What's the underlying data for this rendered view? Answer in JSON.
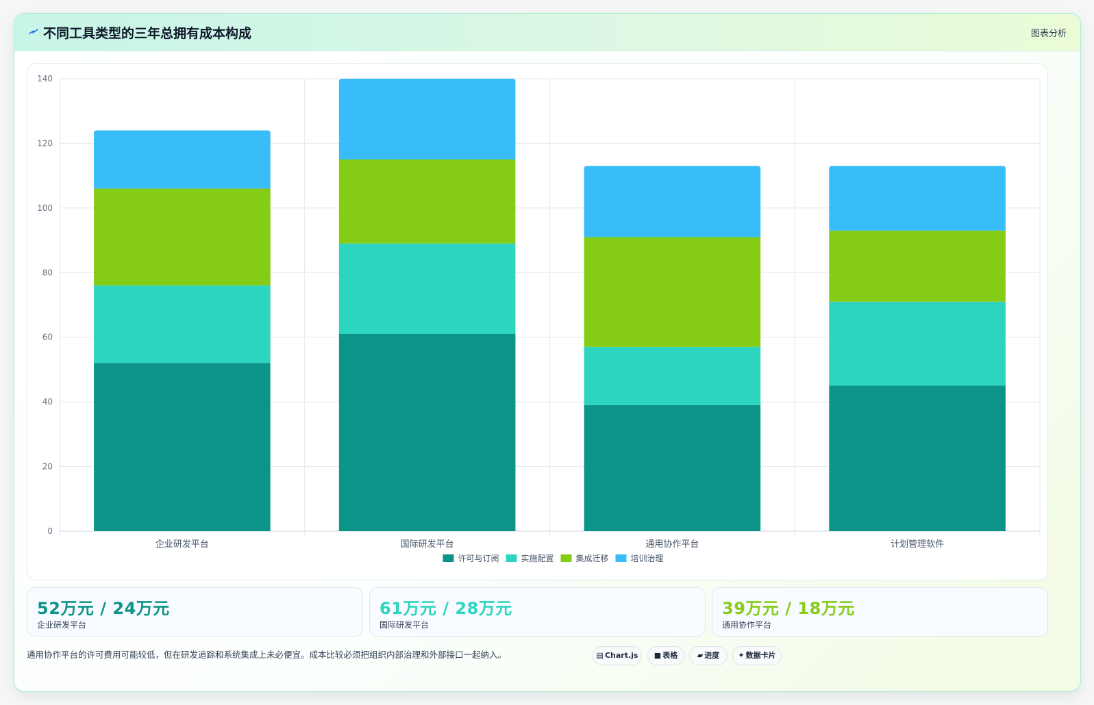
{
  "header": {
    "title": "不同工具类型的三年总拥有成本构成",
    "tag": "图表分析",
    "icon": "sparkle-icon"
  },
  "chart_data": {
    "type": "bar",
    "stacked": true,
    "categories": [
      "企业研发平台",
      "国际研发平台",
      "通用协作平台",
      "计划管理软件"
    ],
    "series": [
      {
        "name": "许可与订阅",
        "color": "#0d9488",
        "values": [
          52,
          61,
          39,
          45
        ]
      },
      {
        "name": "实施配置",
        "color": "#2dd4bf",
        "values": [
          24,
          28,
          18,
          26
        ]
      },
      {
        "name": "集成迁移",
        "color": "#84cc16",
        "values": [
          30,
          26,
          34,
          22
        ]
      },
      {
        "name": "培训治理",
        "color": "#38bdf8",
        "values": [
          18,
          25,
          22,
          20
        ]
      }
    ],
    "yticks": [
      "0",
      "20",
      "40",
      "60",
      "80",
      "100",
      "120",
      "140"
    ],
    "ylim": [
      0,
      140
    ],
    "grid": true,
    "legend_position": "bottom"
  },
  "stats": [
    {
      "value": "52万元 / 24万元",
      "label": "企业研发平台",
      "color": "#0d9488"
    },
    {
      "value": "61万元 / 28万元",
      "label": "国际研发平台",
      "color": "#2dd4bf"
    },
    {
      "value": "39万元 / 18万元",
      "label": "通用协作平台",
      "color": "#84cc16"
    }
  ],
  "footnote": "通用协作平台的许可费用可能较低，但在研发追踪和系统集成上未必便宜。成本比较必须把组织内部治理和外部接口一起纳入。",
  "chips": [
    {
      "label": "Chart.js",
      "icon": "chart-icon"
    },
    {
      "label": "表格",
      "icon": "table-icon"
    },
    {
      "label": "进度",
      "icon": "progress-icon"
    },
    {
      "label": "数据卡片",
      "icon": "card-icon"
    }
  ]
}
